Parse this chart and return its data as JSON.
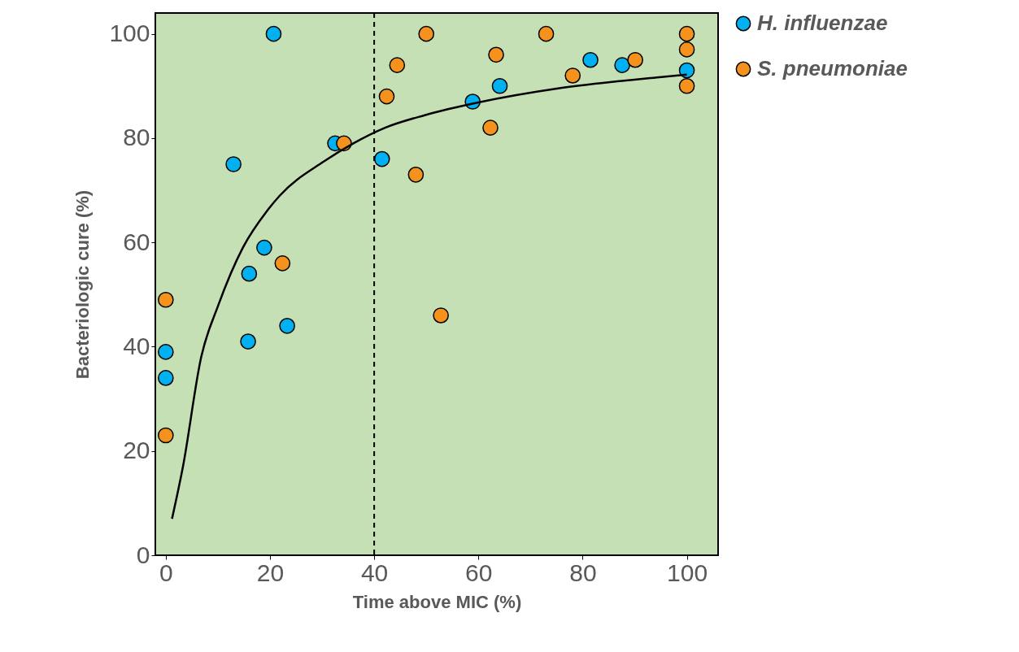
{
  "chart_data": {
    "type": "scatter",
    "xlabel": "Time above MIC (%)",
    "ylabel": "Bacteriologic cure (%)",
    "xlim": [
      -2,
      106
    ],
    "ylim": [
      0,
      104
    ],
    "xticks": [
      0,
      20,
      40,
      60,
      80,
      100
    ],
    "yticks": [
      0,
      20,
      40,
      60,
      80,
      100
    ],
    "grid": false,
    "legend": "right",
    "marker": "circle",
    "series": [
      {
        "name": "H. influenzae",
        "color": "#00b0f0",
        "x": [
          0,
          0,
          13,
          16,
          15.8,
          18.9,
          20.7,
          23.3,
          32.5,
          41.5,
          58.9,
          64.1,
          81.5,
          87.6,
          100
        ],
        "values": [
          39,
          34,
          75,
          54,
          41,
          59,
          100,
          44,
          79,
          76,
          87,
          90,
          95,
          94,
          93
        ]
      },
      {
        "name": "S. pneumoniae",
        "color": "#f5921e",
        "x": [
          0,
          0,
          22.4,
          34.2,
          42.4,
          44.4,
          48,
          50,
          52.8,
          62.3,
          63.4,
          73,
          78.1,
          90.1,
          100,
          100,
          100
        ],
        "values": [
          49,
          23,
          56,
          79,
          88,
          94,
          73,
          100,
          46,
          82,
          96,
          100,
          92,
          95,
          100,
          97,
          90
        ]
      },
      {
        "type": "line",
        "color": "#000000",
        "line_style": "solid",
        "marker": "none",
        "x": [
          1.2,
          3.3,
          6.8,
          10.1,
          14.8,
          19.4,
          21.9,
          30.3,
          36,
          42.1,
          49.7,
          59.8,
          75.8,
          94.7,
          100
        ],
        "values": [
          7,
          17,
          38,
          48,
          59,
          66,
          69,
          75.5,
          79,
          82,
          84.4,
          86.8,
          89.6,
          91.7,
          92.2
        ]
      }
    ],
    "ref_lines": [
      {
        "axis": "x",
        "value": 40,
        "color": "#000000",
        "line_style": "dashed"
      }
    ]
  }
}
